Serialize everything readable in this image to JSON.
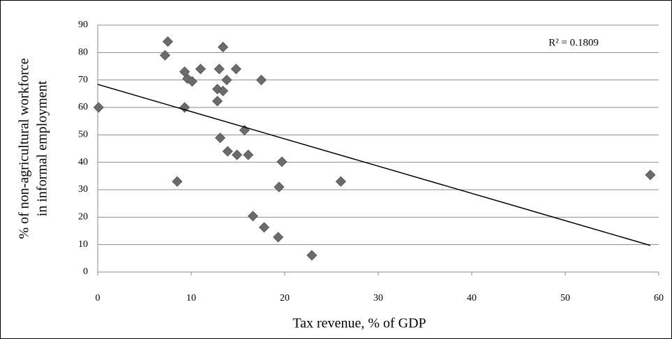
{
  "chart_data": {
    "type": "scatter",
    "x_label": "Tax revenue, % of GDP",
    "y_label": [
      "% of non-agricultural workforce",
      "in informal employment"
    ],
    "annotation": "R² = 0.1809",
    "xlim": [
      0,
      60
    ],
    "xticks": [
      0,
      10,
      20,
      30,
      40,
      50,
      60
    ],
    "ylim": [
      0,
      90
    ],
    "yticks": [
      0,
      10,
      20,
      30,
      40,
      50,
      60,
      70,
      80,
      90
    ],
    "grid": true,
    "color": "#6b6b6b",
    "x": [
      0.1,
      7.5,
      7.2,
      9.3,
      9.6,
      10.1,
      11.0,
      9.3,
      13.4,
      13.0,
      14.8,
      12.8,
      13.4,
      13.8,
      12.8,
      13.1,
      13.9,
      14.9,
      15.7,
      16.1,
      17.5,
      8.5,
      16.6,
      17.8,
      19.3,
      19.7,
      19.4,
      22.9,
      26.0,
      59.1
    ],
    "values": [
      60,
      84,
      79,
      73,
      70.5,
      69.5,
      74,
      60,
      82,
      74,
      74,
      66.7,
      66,
      70,
      62.3,
      48.9,
      44,
      42.7,
      51.7,
      42.7,
      70,
      33,
      20.4,
      16.3,
      12.7,
      40.2,
      31,
      6.1,
      33,
      35.4
    ],
    "trendline": {
      "x": [
        0,
        59.1
      ],
      "y": [
        68.4,
        9.7
      ]
    }
  }
}
